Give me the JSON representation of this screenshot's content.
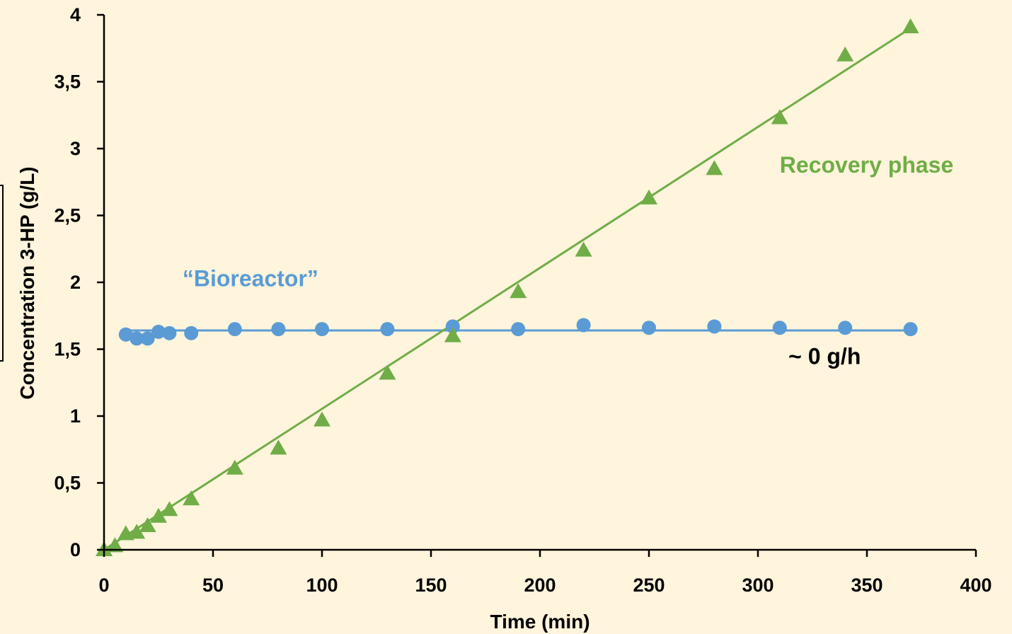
{
  "colors": {
    "background": "#fff4dc",
    "bioreactor": "#5b9bd5",
    "recovery": "#70ad47",
    "axis": "#000000"
  },
  "chart_data": {
    "type": "scatter",
    "title": "",
    "xlabel": "Time (min)",
    "ylabel": "Concentration 3-HP (g/L)",
    "xlim": [
      0,
      400
    ],
    "ylim": [
      0,
      4
    ],
    "x_ticks": [
      0,
      50,
      100,
      150,
      200,
      250,
      300,
      350,
      400
    ],
    "y_ticks": [
      0,
      0.5,
      1,
      1.5,
      2,
      2.5,
      3,
      3.5,
      4
    ],
    "x_tick_labels": [
      "0",
      "50",
      "100",
      "150",
      "200",
      "250",
      "300",
      "350",
      "400"
    ],
    "y_tick_labels": [
      "0",
      "0,5",
      "1",
      "1,5",
      "2",
      "2,5",
      "3",
      "3,5",
      "4"
    ],
    "grid": false,
    "series": [
      {
        "marker": "circle",
        "color": "#5b9bd5",
        "x": [
          10,
          15,
          20,
          25,
          30,
          40,
          60,
          80,
          100,
          130,
          160,
          190,
          220,
          250,
          280,
          310,
          340,
          370
        ],
        "y": [
          1.61,
          1.58,
          1.58,
          1.63,
          1.62,
          1.62,
          1.65,
          1.65,
          1.65,
          1.65,
          1.67,
          1.65,
          1.68,
          1.66,
          1.67,
          1.66,
          1.66,
          1.65
        ],
        "trendline": {
          "x": [
            10,
            370
          ],
          "y": [
            1.64,
            1.64
          ]
        }
      },
      {
        "marker": "triangle",
        "color": "#70ad47",
        "x": [
          0,
          5,
          10,
          15,
          20,
          25,
          30,
          40,
          60,
          80,
          100,
          130,
          160,
          190,
          220,
          250,
          280,
          310,
          340,
          370
        ],
        "y": [
          0.0,
          0.03,
          0.12,
          0.13,
          0.18,
          0.25,
          0.3,
          0.38,
          0.61,
          0.76,
          0.97,
          1.32,
          1.6,
          1.93,
          2.24,
          2.63,
          2.85,
          3.23,
          3.7,
          3.91
        ],
        "trendline": {
          "x": [
            0,
            370
          ],
          "y": [
            0.0,
            3.9
          ]
        }
      }
    ],
    "annotations": [
      {
        "text": "“Bioreactor”",
        "color": "#5b9bd5",
        "x": 36,
        "y": 1.97
      },
      {
        "text": "Recovery phase",
        "color": "#70ad47",
        "x": 310,
        "y": 2.82
      },
      {
        "text": "~ 0 g/h",
        "color": "#000000",
        "x": 314,
        "y": 1.39
      }
    ]
  }
}
